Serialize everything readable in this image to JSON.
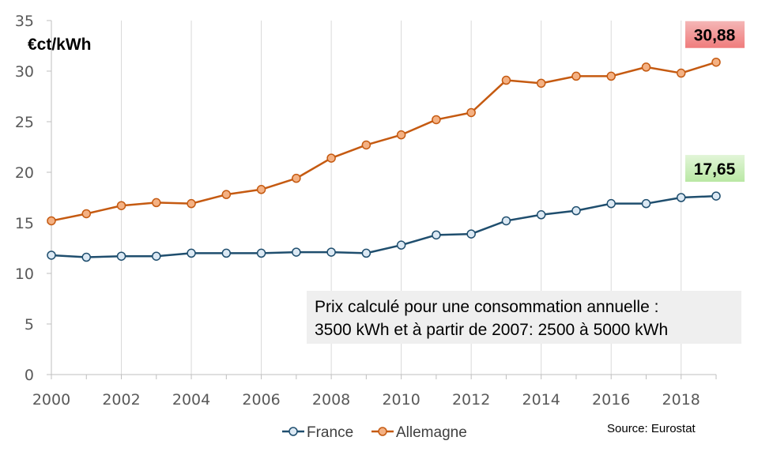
{
  "chart_data": {
    "type": "line",
    "ylabel": "€ct/kWh",
    "ylim": [
      0,
      35
    ],
    "yticks": [
      0,
      5,
      10,
      15,
      20,
      25,
      30,
      35
    ],
    "xlim": [
      2000,
      2019
    ],
    "xticks": [
      2000,
      2002,
      2004,
      2006,
      2008,
      2010,
      2012,
      2014,
      2016,
      2018
    ],
    "x": [
      2000,
      2001,
      2002,
      2003,
      2004,
      2005,
      2006,
      2007,
      2008,
      2009,
      2010,
      2011,
      2012,
      2013,
      2014,
      2015,
      2016,
      2017,
      2018,
      2019
    ],
    "grid": "vertical",
    "legend": "bottom",
    "series": [
      {
        "name": "France",
        "line_color": "#1F4E6E",
        "marker_fill": "#DCE9F4",
        "values": [
          11.8,
          11.6,
          11.7,
          11.7,
          12.0,
          12.0,
          12.0,
          12.1,
          12.1,
          12.0,
          12.8,
          13.8,
          13.9,
          15.2,
          15.8,
          16.2,
          16.9,
          16.9,
          17.5,
          17.65
        ]
      },
      {
        "name": "Allemagne",
        "line_color": "#C55A11",
        "marker_fill": "#F4B183",
        "values": [
          15.2,
          15.9,
          16.7,
          17.0,
          16.9,
          17.8,
          18.3,
          19.4,
          21.4,
          22.7,
          23.7,
          25.2,
          25.9,
          29.1,
          28.8,
          29.5,
          29.5,
          30.4,
          29.8,
          30.88
        ]
      }
    ],
    "annotations": {
      "allemagne_last": {
        "text": "30,88",
        "year": 2019,
        "color_top": "#F4B6B6",
        "color_bottom": "#F07C7C"
      },
      "france_last": {
        "text": "17,65",
        "year": 2019,
        "color_top": "#E2F5D8",
        "color_bottom": "#B9E8A4"
      },
      "note_lines": [
        "Prix calculé pour une consommation annuelle :",
        "3500 kWh et à partir de 2007: 2500 à 5000 kWh"
      ],
      "note_bg": "#EFEFEF",
      "source": "Source: Eurostat"
    }
  }
}
